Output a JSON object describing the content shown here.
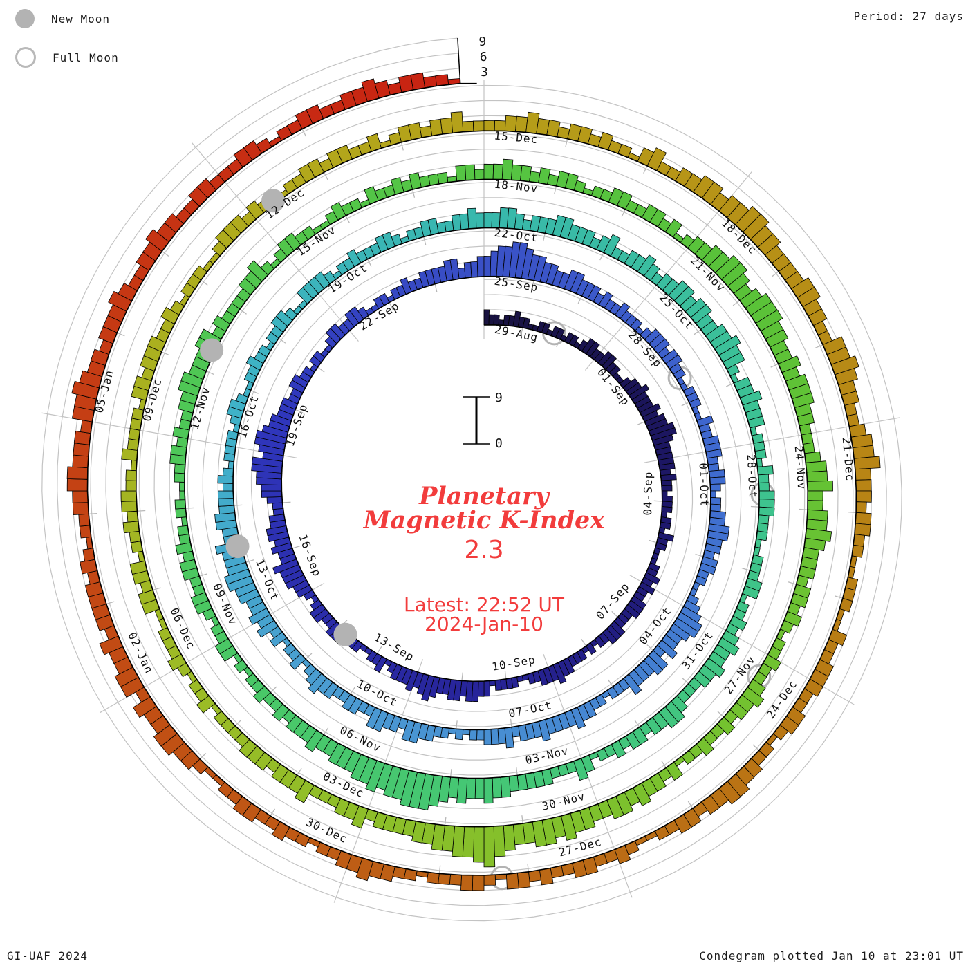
{
  "header": {
    "period_label": "Period: 27 days"
  },
  "legend": {
    "new_moon": "New Moon",
    "full_moon": "Full Moon"
  },
  "footer": {
    "left": "GI-UAF 2024",
    "right": "Condegram plotted Jan 10 at 23:01 UT"
  },
  "center": {
    "title_line1": "Planetary",
    "title_line2": "Magnetic K-Index",
    "current_value": "2.3",
    "latest_label": "Latest: 22:52 UT",
    "latest_date": "2024-Jan-10",
    "scale_max": "9",
    "scale_min": "0"
  },
  "radial_axis": {
    "ticks": [
      "3",
      "6",
      "9"
    ]
  },
  "chart_data": {
    "type": "bar",
    "subtype": "condegram-spiral-polar-bar",
    "title": "Planetary Magnetic K-Index",
    "start_date": "2023-08-29",
    "end_date": "2024-01-10",
    "period_days": 27,
    "samples_per_day": 8,
    "k_range": [
      0,
      9
    ],
    "grid_levels": [
      0,
      3,
      6,
      9
    ],
    "label_step_days": 3,
    "date_labels": [
      "29-Aug",
      "01-Sep",
      "04-Sep",
      "07-Sep",
      "10-Sep",
      "13-Sep",
      "16-Sep",
      "19-Sep",
      "22-Sep",
      "25-Sep",
      "28-Sep",
      "01-Oct",
      "04-Oct",
      "07-Oct",
      "10-Oct",
      "13-Oct",
      "16-Oct",
      "19-Oct",
      "22-Oct",
      "25-Oct",
      "28-Oct",
      "31-Oct",
      "03-Nov",
      "06-Nov",
      "09-Nov",
      "12-Nov",
      "15-Nov",
      "18-Nov",
      "21-Nov",
      "24-Nov",
      "27-Nov",
      "30-Nov",
      "03-Dec",
      "06-Dec",
      "09-Dec",
      "12-Dec",
      "15-Dec",
      "18-Dec",
      "21-Dec",
      "24-Dec",
      "27-Dec",
      "30-Dec",
      "02-Jan",
      "05-Jan"
    ],
    "k_values_by_day": [
      "32212232",
      "21122122",
      "12212332",
      "23322112",
      "33433343",
      "44554333",
      "33232212",
      "22122132",
      "21112232",
      "32233322",
      "23332212",
      "12223343",
      "33221122",
      "22133443",
      "44334543",
      "43332132",
      "21122233",
      "32233212",
      "33444533",
      "43443322",
      "34455664",
      "56654433",
      "32233221",
      "22112332",
      "23321122",
      "12232233",
      "33442334",
      "45667765",
      "54433443",
      "33232232",
      "22123332",
      "33221122",
      "21132233",
      "32233212",
      "23344332",
      "33221123",
      "45543342",
      "44333422",
      "21223343",
      "33343332",
      "43332212",
      "12233442",
      "33442233",
      "22334321",
      "32213243",
      "43344554",
      "44533443",
      "33232122",
      "22123321",
      "12232212",
      "23321133",
      "33212232",
      "22332122",
      "33223343",
      "33443233",
      "34433323",
      "42233432",
      "33443443",
      "34454421",
      "33433312",
      "22132233",
      "32221122",
      "23312232",
      "34334332",
      "22344332",
      "33232213",
      "42223333",
      "34454454",
      "56777665",
      "65544433",
      "43332322",
      "32212133",
      "22123322",
      "33232212",
      "21122332",
      "32233443",
      "33442322",
      "22334212",
      "33221123",
      "22132232",
      "32221332",
      "33433232",
      "33212233",
      "22332312",
      "33445543",
      "45554433",
      "43444332",
      "22344533",
      "44543332",
      "33232122",
      "32234332",
      "32232213",
      "23343443",
      "34454554",
      "45687665",
      "54433332",
      "43322243",
      "33233322",
      "22132212",
      "32221133",
      "23312232",
      "33221322",
      "22133233",
      "32232122",
      "21123332",
      "32212233",
      "23322312",
      "33233422",
      "22334332",
      "33232213",
      "42233443",
      "44554433",
      "33443322",
      "44543322",
      "34453332",
      "33221122",
      "21132233",
      "32233212",
      "23344332",
      "33221123",
      "22332232",
      "33123322",
      "21223343",
      "32212232",
      "23322112",
      "33443342",
      "44334233",
      "33232122",
      "33443332",
      "44543323",
      "33432233",
      "43322332",
      "22332122",
      "33223343",
      "23322122"
    ],
    "moons": {
      "new": [
        {
          "date": "2023-09-14",
          "day": 16.8
        },
        {
          "date": "2023-10-14",
          "day": 46.3
        },
        {
          "date": "2023-11-13",
          "day": 76.3
        },
        {
          "date": "2023-12-12",
          "day": 105.3
        }
      ],
      "full": [
        {
          "date": "2023-08-30",
          "day": 1.8
        },
        {
          "date": "2023-09-29",
          "day": 31.5
        },
        {
          "date": "2023-10-28",
          "day": 60.8
        },
        {
          "date": "2023-11-27",
          "day": 90.3
        },
        {
          "date": "2023-12-26",
          "day": 121.3
        }
      ]
    },
    "colors": {
      "accent_red_text": "#f23c3c",
      "grid": "#c3c3c3",
      "day_tick": "#b8b8b8",
      "bar_outline": "#000000",
      "moon_gray": "#b3b3b3",
      "gradient_stops": [
        [
          0.0,
          "#18123f"
        ],
        [
          0.05,
          "#1d1768"
        ],
        [
          0.1,
          "#272499"
        ],
        [
          0.16,
          "#2f36bc"
        ],
        [
          0.2,
          "#3a51c6"
        ],
        [
          0.24,
          "#3e66cf"
        ],
        [
          0.28,
          "#4583d2"
        ],
        [
          0.32,
          "#4b9cd2"
        ],
        [
          0.36,
          "#3fb2c8"
        ],
        [
          0.4,
          "#38b8ac"
        ],
        [
          0.44,
          "#3cc294"
        ],
        [
          0.48,
          "#42c67e"
        ],
        [
          0.53,
          "#4ac866"
        ],
        [
          0.58,
          "#52c64a"
        ],
        [
          0.63,
          "#5ac238"
        ],
        [
          0.68,
          "#78c22e"
        ],
        [
          0.73,
          "#9cbc26"
        ],
        [
          0.78,
          "#b2aa1c"
        ],
        [
          0.82,
          "#b79417"
        ],
        [
          0.86,
          "#b87e14"
        ],
        [
          0.9,
          "#bc6415"
        ],
        [
          0.95,
          "#c44214"
        ],
        [
          1.0,
          "#c92012"
        ]
      ]
    },
    "legend_position": "top-left",
    "grid_on": true
  }
}
